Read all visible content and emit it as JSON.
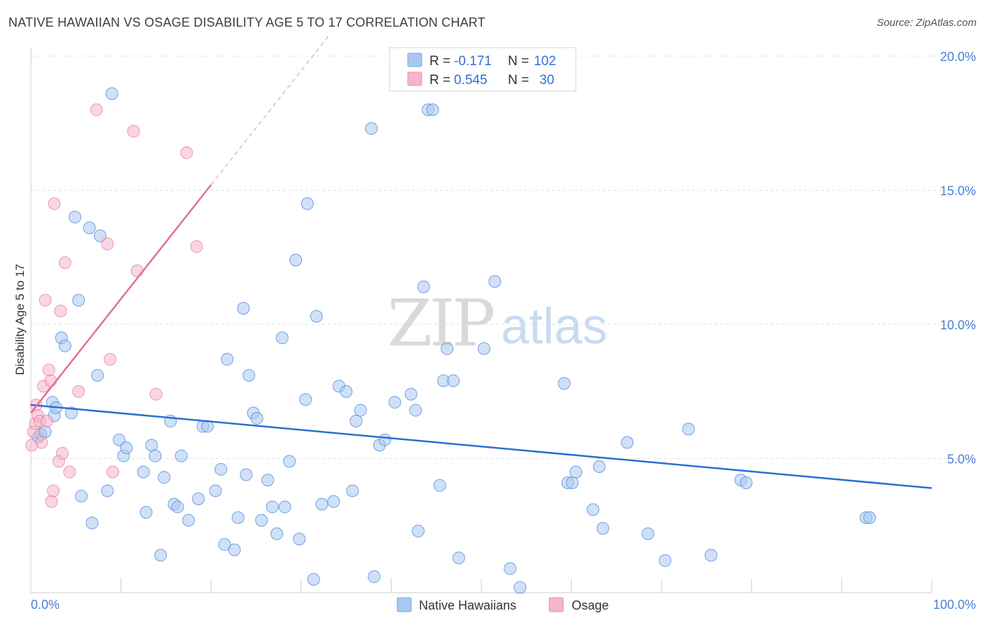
{
  "title": "NATIVE HAWAIIAN VS OSAGE DISABILITY AGE 5 TO 17 CORRELATION CHART",
  "source": "Source: ZipAtlas.com",
  "watermark": {
    "zip": "ZIP",
    "atlas": "atlas"
  },
  "legend_top": [
    {
      "r_label": "R =",
      "r_value": "-0.171",
      "n_label": "N =",
      "n_value": "102",
      "color": "#a9c8f0"
    },
    {
      "r_label": "R =",
      "r_value": "0.545",
      "n_label": "N =",
      "n_value": "30",
      "color": "#f5b5ca"
    }
  ],
  "legend_bottom": [
    {
      "label": "Native Hawaiians",
      "color": "#a9c8f0"
    },
    {
      "label": "Osage",
      "color": "#f5b5ca"
    }
  ],
  "chart_data": {
    "type": "scatter",
    "title": "NATIVE HAWAIIAN VS OSAGE DISABILITY AGE 5 TO 17 CORRELATION CHART",
    "xlabel": "",
    "ylabel": "Disability Age 5 to 17",
    "xlim": [
      0,
      100
    ],
    "ylim": [
      0,
      20
    ],
    "x_tick_labels": [
      "0.0%",
      "100.0%"
    ],
    "y_ticks": [
      5,
      10,
      15,
      20
    ],
    "y_tick_labels": [
      "5.0%",
      "10.0%",
      "15.0%",
      "20.0%"
    ],
    "grid": true,
    "legend_position": "top-center",
    "series": [
      {
        "name": "Native Hawaiians",
        "color": "#4a86d8",
        "fill": "#a9c8f0",
        "trend": {
          "x": [
            0,
            100
          ],
          "y": [
            7.0,
            3.9
          ]
        },
        "points": [
          [
            0.8,
            5.8
          ],
          [
            1.1,
            5.9
          ],
          [
            1.6,
            6.0
          ],
          [
            2.4,
            7.1
          ],
          [
            2.6,
            6.6
          ],
          [
            2.8,
            6.9
          ],
          [
            3.4,
            9.5
          ],
          [
            3.8,
            9.2
          ],
          [
            4.5,
            6.7
          ],
          [
            4.9,
            14.0
          ],
          [
            5.3,
            10.9
          ],
          [
            5.6,
            3.6
          ],
          [
            6.5,
            13.6
          ],
          [
            6.8,
            2.6
          ],
          [
            7.4,
            8.1
          ],
          [
            7.7,
            13.3
          ],
          [
            8.5,
            3.8
          ],
          [
            9.0,
            18.6
          ],
          [
            9.8,
            5.7
          ],
          [
            10.3,
            5.1
          ],
          [
            10.6,
            5.4
          ],
          [
            12.5,
            4.5
          ],
          [
            12.8,
            3.0
          ],
          [
            13.4,
            5.5
          ],
          [
            13.8,
            5.1
          ],
          [
            14.4,
            1.4
          ],
          [
            14.8,
            4.3
          ],
          [
            15.5,
            6.4
          ],
          [
            15.9,
            3.3
          ],
          [
            16.3,
            3.2
          ],
          [
            16.7,
            5.1
          ],
          [
            17.5,
            2.7
          ],
          [
            18.6,
            3.5
          ],
          [
            19.1,
            6.2
          ],
          [
            19.6,
            6.2
          ],
          [
            20.5,
            3.8
          ],
          [
            21.1,
            4.6
          ],
          [
            21.5,
            1.8
          ],
          [
            21.8,
            8.7
          ],
          [
            22.6,
            1.6
          ],
          [
            23.0,
            2.8
          ],
          [
            23.6,
            10.6
          ],
          [
            23.9,
            4.4
          ],
          [
            24.2,
            8.1
          ],
          [
            24.7,
            6.7
          ],
          [
            25.1,
            6.5
          ],
          [
            25.6,
            2.7
          ],
          [
            26.3,
            4.2
          ],
          [
            26.8,
            3.2
          ],
          [
            27.3,
            2.2
          ],
          [
            27.9,
            9.5
          ],
          [
            28.2,
            3.2
          ],
          [
            28.7,
            4.9
          ],
          [
            29.4,
            12.4
          ],
          [
            29.8,
            2.0
          ],
          [
            30.5,
            7.2
          ],
          [
            30.7,
            14.5
          ],
          [
            31.4,
            0.5
          ],
          [
            31.7,
            10.3
          ],
          [
            32.3,
            3.3
          ],
          [
            33.6,
            3.4
          ],
          [
            34.2,
            7.7
          ],
          [
            35.0,
            7.5
          ],
          [
            35.7,
            3.8
          ],
          [
            36.1,
            6.4
          ],
          [
            36.6,
            6.8
          ],
          [
            37.8,
            17.3
          ],
          [
            38.1,
            0.6
          ],
          [
            38.7,
            5.5
          ],
          [
            39.3,
            5.7
          ],
          [
            40.4,
            7.1
          ],
          [
            42.2,
            7.4
          ],
          [
            42.7,
            6.8
          ],
          [
            43.0,
            2.3
          ],
          [
            43.6,
            11.4
          ],
          [
            44.1,
            18.0
          ],
          [
            44.6,
            18.0
          ],
          [
            45.4,
            4.0
          ],
          [
            45.8,
            7.9
          ],
          [
            46.2,
            9.1
          ],
          [
            46.9,
            7.9
          ],
          [
            47.5,
            1.3
          ],
          [
            50.3,
            9.1
          ],
          [
            51.5,
            11.6
          ],
          [
            53.2,
            0.9
          ],
          [
            54.3,
            0.2
          ],
          [
            59.2,
            7.8
          ],
          [
            59.6,
            4.1
          ],
          [
            60.1,
            4.1
          ],
          [
            60.5,
            4.5
          ],
          [
            62.4,
            3.1
          ],
          [
            63.1,
            4.7
          ],
          [
            63.5,
            2.4
          ],
          [
            66.2,
            5.6
          ],
          [
            68.5,
            2.2
          ],
          [
            70.4,
            1.2
          ],
          [
            73.0,
            6.1
          ],
          [
            75.5,
            1.4
          ],
          [
            78.8,
            4.2
          ],
          [
            79.4,
            4.1
          ],
          [
            92.7,
            2.8
          ],
          [
            93.1,
            2.8
          ]
        ]
      },
      {
        "name": "Osage",
        "color": "#e57ba1",
        "fill": "#f5b5ca",
        "trend": {
          "x": [
            0,
            20
          ],
          "y": [
            6.7,
            15.2
          ]
        },
        "points": [
          [
            0.1,
            5.5
          ],
          [
            0.3,
            6.0
          ],
          [
            0.5,
            6.3
          ],
          [
            0.6,
            7.0
          ],
          [
            0.8,
            6.6
          ],
          [
            1.0,
            6.4
          ],
          [
            1.2,
            5.6
          ],
          [
            1.4,
            7.7
          ],
          [
            1.6,
            10.9
          ],
          [
            1.8,
            6.4
          ],
          [
            2.0,
            8.3
          ],
          [
            2.2,
            7.9
          ],
          [
            2.3,
            3.4
          ],
          [
            2.5,
            3.8
          ],
          [
            2.6,
            14.5
          ],
          [
            3.1,
            4.9
          ],
          [
            3.3,
            10.5
          ],
          [
            3.5,
            5.2
          ],
          [
            3.8,
            12.3
          ],
          [
            4.3,
            4.5
          ],
          [
            5.3,
            7.5
          ],
          [
            7.3,
            18.0
          ],
          [
            8.5,
            13.0
          ],
          [
            8.8,
            8.7
          ],
          [
            9.1,
            4.5
          ],
          [
            11.4,
            17.2
          ],
          [
            11.8,
            12.0
          ],
          [
            13.9,
            7.4
          ],
          [
            17.3,
            16.4
          ],
          [
            18.4,
            12.9
          ]
        ]
      }
    ]
  }
}
